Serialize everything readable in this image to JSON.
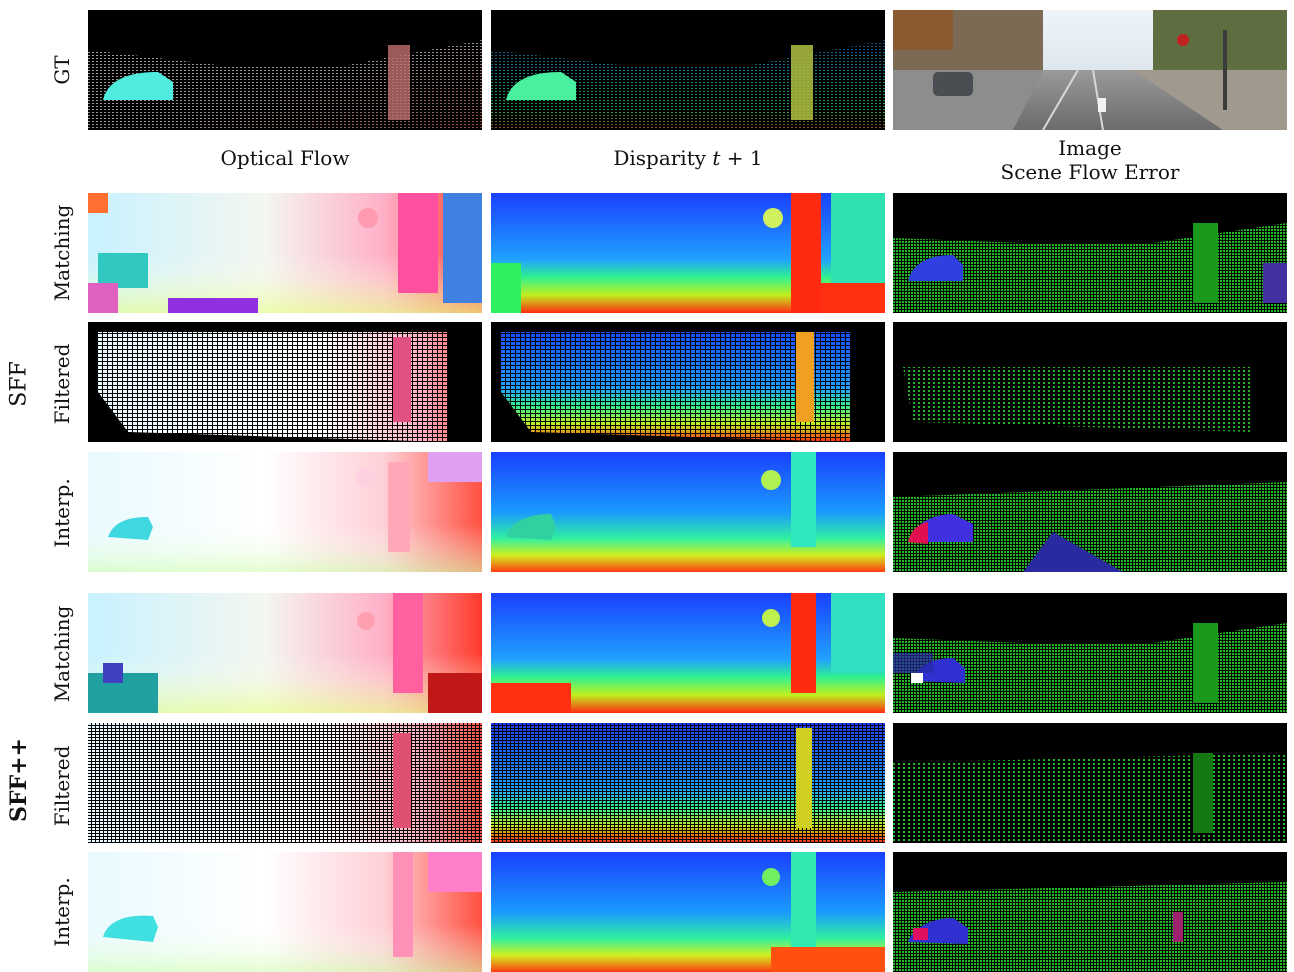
{
  "row_gt_label": "GT",
  "column_labels": {
    "optical_flow": "Optical Flow",
    "disparity_prefix": "Disparity ",
    "disparity_var": "t",
    "disparity_suffix": " + 1",
    "image_line1": "Image",
    "image_line2": "Scene Flow Error"
  },
  "groups": {
    "sff": "SFF",
    "sffpp": "SFF++"
  },
  "row_labels": {
    "sff_matching": "Matching",
    "sff_filtered": "Filtered",
    "sff_interp": "Interp.",
    "sffpp_matching": "Matching",
    "sffpp_filtered": "Filtered",
    "sffpp_interp": "Interp."
  },
  "colors": {
    "background": "#ffffff",
    "panel_black": "#000000",
    "flow_light": "#eef8ff",
    "flow_red": "#ff3a2a",
    "flow_cyan": "#40e0d8",
    "disp_blue": "#1a4fff",
    "disp_green": "#30e060",
    "disp_red": "#ff2a10",
    "error_green": "#22b822",
    "error_blue": "#2020d0"
  }
}
